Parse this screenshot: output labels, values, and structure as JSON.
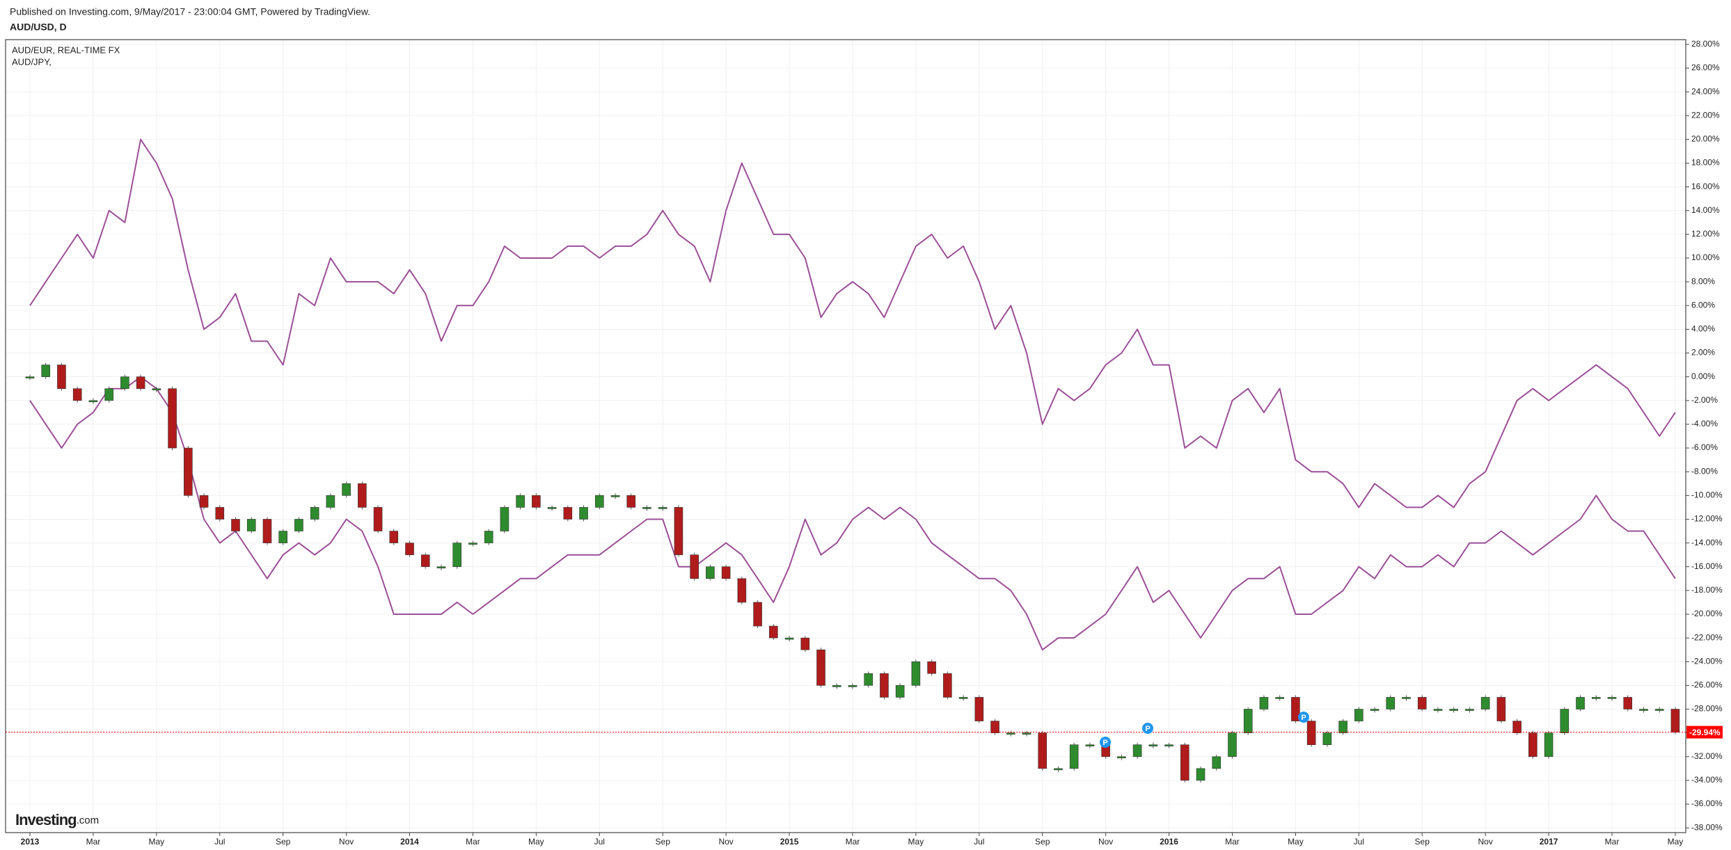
{
  "chart_data": {
    "type": "line",
    "title": "Published on Investing.com, 9/May/2017 - 23:00:04 GMT, Powered by TradingView.",
    "logo": [
      "Investing",
      ".com"
    ],
    "annotations": [
      "P",
      "P",
      "P"
    ],
    "grid": true,
    "categories": [
      "2013",
      null,
      null,
      null,
      "Mar",
      null,
      null,
      null,
      "May",
      null,
      null,
      null,
      "Jul",
      null,
      null,
      null,
      "Sep",
      null,
      null,
      null,
      "Nov",
      null,
      null,
      null,
      "2014",
      null,
      null,
      null,
      "Mar",
      null,
      null,
      null,
      "May",
      null,
      null,
      null,
      "Jul",
      null,
      null,
      null,
      "Sep",
      null,
      null,
      null,
      "Nov",
      null,
      null,
      null,
      "2015",
      null,
      null,
      null,
      "Mar",
      null,
      null,
      null,
      "May",
      null,
      null,
      null,
      "Jul",
      null,
      null,
      null,
      "Sep",
      null,
      null,
      null,
      "Nov",
      null,
      null,
      null,
      "2016",
      null,
      null,
      null,
      "Mar",
      null,
      null,
      null,
      "May",
      null,
      null,
      null,
      "Jul",
      null,
      null,
      null,
      "Sep",
      null,
      null,
      null,
      "Nov",
      null,
      null,
      null,
      "2017",
      null,
      null,
      null,
      "Mar",
      null,
      null,
      null,
      "May"
    ],
    "ylim": [
      -38.4,
      28.4
    ],
    "yticks": [
      {
        "value": 28,
        "label": "28.00%"
      },
      {
        "value": 26,
        "label": "26.00%"
      },
      {
        "value": 24,
        "label": "24.00%"
      },
      {
        "value": 22,
        "label": "22.00%"
      },
      {
        "value": 20,
        "label": "20.00%"
      },
      {
        "value": 18,
        "label": "18.00%"
      },
      {
        "value": 16,
        "label": "16.00%"
      },
      {
        "value": 14,
        "label": "14.00%"
      },
      {
        "value": 12,
        "label": "12.00%"
      },
      {
        "value": 10,
        "label": "10.00%"
      },
      {
        "value": 8,
        "label": "8.00%"
      },
      {
        "value": 6,
        "label": "6.00%"
      },
      {
        "value": 4,
        "label": "4.00%"
      },
      {
        "value": 2,
        "label": "2.00%"
      },
      {
        "value": 0,
        "label": "0.00%"
      },
      {
        "value": -2,
        "label": "-2.00%"
      },
      {
        "value": -4,
        "label": "-4.00%"
      },
      {
        "value": -6,
        "label": "-6.00%"
      },
      {
        "value": -8,
        "label": "-8.00%"
      },
      {
        "value": -10,
        "label": "-10.00%"
      },
      {
        "value": -12,
        "label": "-12.00%"
      },
      {
        "value": -14,
        "label": "-14.00%"
      },
      {
        "value": -16,
        "label": "-16.00%"
      },
      {
        "value": -18,
        "label": "-18.00%"
      },
      {
        "value": -20,
        "label": "-20.00%"
      },
      {
        "value": -22,
        "label": "-22.00%"
      },
      {
        "value": -24,
        "label": "-24.00%"
      },
      {
        "value": -26,
        "label": "-26.00%"
      },
      {
        "value": -28,
        "label": "-28.00%"
      },
      {
        "value": -30,
        "label": "-30.00%"
      },
      {
        "value": -32,
        "label": "-32.00%"
      },
      {
        "value": -34,
        "label": "-34.00%"
      },
      {
        "value": -36,
        "label": "-36.00%"
      },
      {
        "value": -38,
        "label": "-38.00%"
      }
    ],
    "series": [
      {
        "name": "AUD/USD, D",
        "type": "candle",
        "up_color": "#2e8b2e",
        "down_color": "#b01c1c",
        "last_color": "#ff0000",
        "values": [
          0,
          1,
          -1,
          -2,
          -2,
          -1,
          0,
          -1,
          -1,
          -6,
          -10,
          -11,
          -12,
          -13,
          -12,
          -14,
          -13,
          -12,
          -11,
          -10,
          -9,
          -11,
          -13,
          -14,
          -15,
          -16,
          -16,
          -14,
          -14,
          -13,
          -11,
          -10,
          -11,
          -11,
          -12,
          -11,
          -10,
          -10,
          -11,
          -11,
          -11,
          -15,
          -17,
          -16,
          -17,
          -19,
          -21,
          -22,
          -22,
          -23,
          -26,
          -26,
          -26,
          -25,
          -27,
          -26,
          -24,
          -25,
          -27,
          -27,
          -29,
          -30,
          -30,
          -30,
          -33,
          -33,
          -31,
          -31,
          -32,
          -32,
          -31,
          -31,
          -31,
          -34,
          -33,
          -32,
          -30,
          -28,
          -27,
          -27,
          -29,
          -31,
          -30,
          -29,
          -28,
          -28,
          -27,
          -27,
          -28,
          -28,
          -28,
          -28,
          -27,
          -29,
          -30,
          -32,
          -30,
          -28,
          -27,
          -27,
          -27,
          -28,
          -28,
          -28,
          -29.94
        ],
        "value_labels": [
          null,
          null,
          null,
          null,
          null,
          null,
          null,
          null,
          null,
          null,
          null,
          null,
          null,
          null,
          null,
          null,
          null,
          null,
          null,
          null,
          null,
          null,
          null,
          null,
          null,
          null,
          null,
          null,
          null,
          null,
          null,
          null,
          null,
          null,
          null,
          null,
          null,
          null,
          null,
          null,
          null,
          null,
          null,
          null,
          null,
          null,
          null,
          null,
          null,
          null,
          null,
          null,
          null,
          null,
          null,
          null,
          null,
          null,
          null,
          null,
          null,
          null,
          null,
          null,
          null,
          null,
          null,
          null,
          null,
          null,
          null,
          null,
          null,
          null,
          null,
          null,
          null,
          null,
          null,
          null,
          null,
          null,
          null,
          null,
          null,
          null,
          null,
          null,
          null,
          null,
          null,
          null,
          null,
          null,
          null,
          null,
          null,
          null,
          null,
          null,
          null,
          null,
          null,
          null,
          "-29.94%"
        ]
      },
      {
        "name": "AUD/EUR, REAL-TIME FX",
        "type": "line",
        "color": "#9b4f96",
        "values": [
          -2,
          -4,
          -6,
          -4,
          -3,
          -1,
          -1,
          0,
          -1,
          -3,
          -7,
          -12,
          -14,
          -13,
          -15,
          -17,
          -15,
          -14,
          -15,
          -14,
          -12,
          -13,
          -16,
          -20,
          -20,
          -20,
          -20,
          -19,
          -20,
          -19,
          -18,
          -17,
          -17,
          -16,
          -15,
          -15,
          -15,
          -14,
          -13,
          -12,
          -12,
          -16,
          -16,
          -15,
          -14,
          -15,
          -17,
          -19,
          -16,
          -12,
          -15,
          -14,
          -12,
          -11,
          -12,
          -11,
          -12,
          -14,
          -15,
          -16,
          -17,
          -17,
          -18,
          -20,
          -23,
          -22,
          -22,
          -21,
          -20,
          -18,
          -16,
          -19,
          -18,
          -20,
          -22,
          -20,
          -18,
          -17,
          -17,
          -16,
          -20,
          -20,
          -19,
          -18,
          -16,
          -17,
          -15,
          -16,
          -16,
          -15,
          -16,
          -14,
          -14,
          -13,
          -14,
          -15,
          -14,
          -13,
          -12,
          -10,
          -12,
          -13,
          -13,
          -15,
          -17
        ]
      },
      {
        "name": "AUD/JPY,",
        "type": "line",
        "color": "#9b4f96",
        "values": [
          6,
          8,
          10,
          12,
          10,
          14,
          13,
          20,
          18,
          15,
          9,
          4,
          5,
          7,
          3,
          3,
          1,
          7,
          6,
          10,
          8,
          8,
          8,
          7,
          9,
          7,
          3,
          6,
          6,
          8,
          11,
          10,
          10,
          10,
          11,
          11,
          10,
          11,
          11,
          12,
          14,
          12,
          11,
          8,
          14,
          18,
          15,
          12,
          12,
          10,
          5,
          7,
          8,
          7,
          5,
          8,
          11,
          12,
          10,
          11,
          8,
          4,
          6,
          2,
          -4,
          -1,
          -2,
          -1,
          1,
          2,
          4,
          1,
          1,
          -6,
          -5,
          -6,
          -2,
          -1,
          -3,
          -1,
          -7,
          -8,
          -8,
          -9,
          -11,
          -9,
          -10,
          -11,
          -11,
          -10,
          -11,
          -9,
          -8,
          -5,
          -2,
          -1,
          -2,
          -1,
          0,
          1,
          0,
          -1,
          -3,
          -5,
          -3
        ]
      }
    ]
  }
}
